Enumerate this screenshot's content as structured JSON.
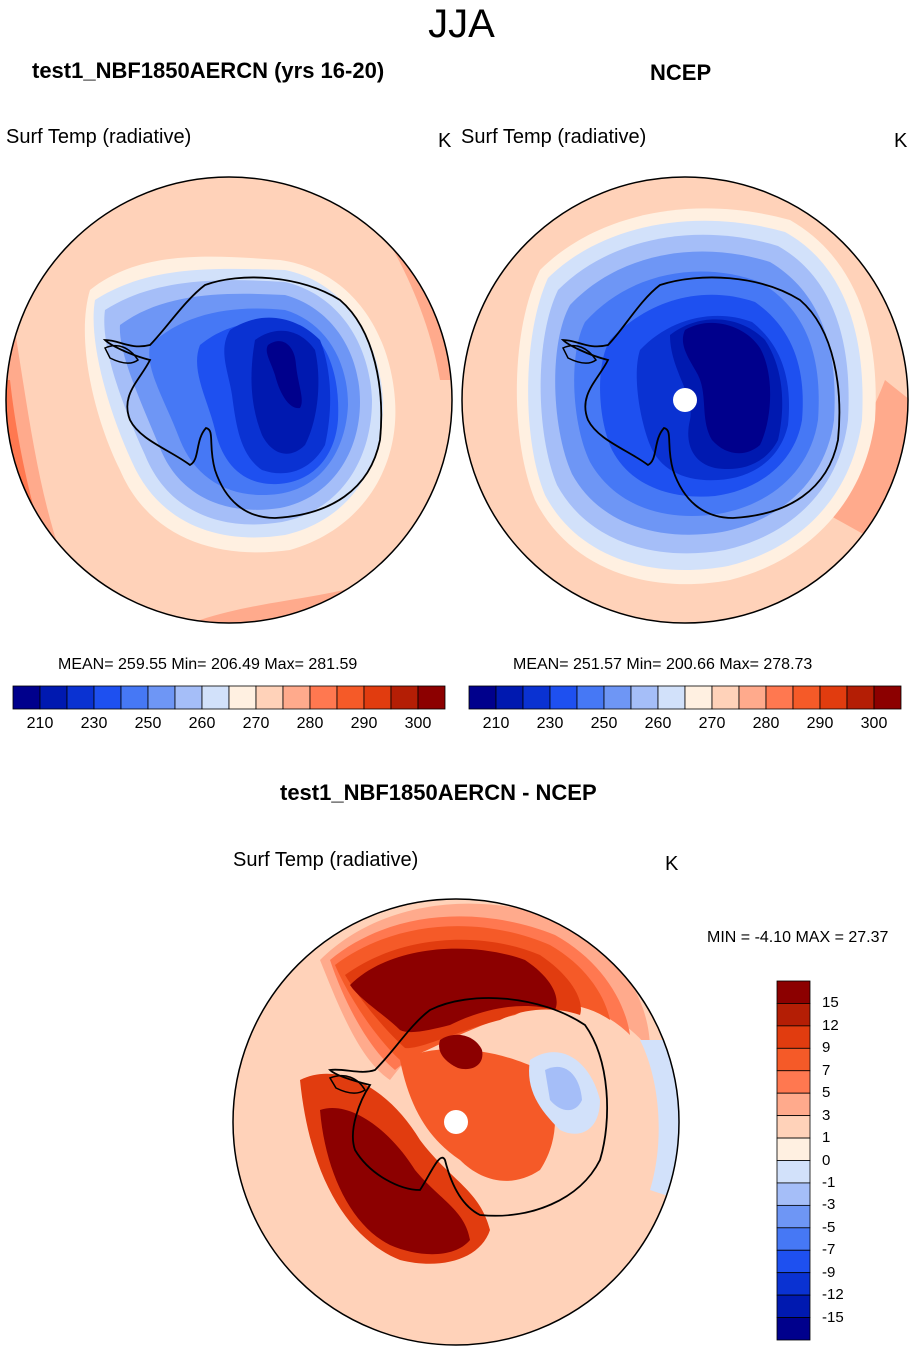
{
  "figure": {
    "title": "JJA",
    "panels": [
      {
        "title": "test1_NBF1850AERCN (yrs 16-20)",
        "variable": "Surf Temp (radiative)",
        "units": "K",
        "stats_text": "MEAN= 259.55  Min= 206.49  Max= 281.59"
      },
      {
        "title": "NCEP",
        "variable": "Surf Temp (radiative)",
        "units": "K",
        "stats_text": "MEAN= 251.57  Min= 200.66  Max= 278.73"
      },
      {
        "title": "test1_NBF1850AERCN - NCEP",
        "variable": "Surf Temp (radiative)",
        "units": "K",
        "stats_text": "MIN =  -4.10 MAX =  27.37"
      }
    ],
    "abs_colors": [
      "#00008c",
      "#0019b0",
      "#0a32d2",
      "#1e50f0",
      "#4678f5",
      "#6e96f5",
      "#a5bef8",
      "#d2e1fa",
      "#fff0e1",
      "#ffd2b9",
      "#ffaa8c",
      "#ff7850",
      "#f55a28",
      "#e13c0f",
      "#b41e05",
      "#8c0000"
    ],
    "diff_colors": [
      "#00008c",
      "#0019b0",
      "#0a32d2",
      "#1e50f0",
      "#4678f5",
      "#6e96f5",
      "#a5bef8",
      "#d2e1fa",
      "#fff0e1",
      "#ffd2b9",
      "#ffaa8c",
      "#ff7850",
      "#f55a28",
      "#e13c0f",
      "#b41e05",
      "#8c0000"
    ]
  },
  "chart_data": [
    {
      "type": "heatmap",
      "projection": "south-polar-stereographic",
      "title": "test1_NBF1850AERCN (yrs 16-20)",
      "variable": "Surf Temp (radiative)",
      "units": "K",
      "mean": 259.55,
      "min": 206.49,
      "max": 281.59,
      "colorbar_ticks": [
        "210",
        "230",
        "250",
        "260",
        "270",
        "280",
        "290",
        "300"
      ]
    },
    {
      "type": "heatmap",
      "projection": "south-polar-stereographic",
      "title": "NCEP",
      "variable": "Surf Temp (radiative)",
      "units": "K",
      "mean": 251.57,
      "min": 200.66,
      "max": 278.73,
      "colorbar_ticks": [
        "210",
        "230",
        "250",
        "260",
        "270",
        "280",
        "290",
        "300"
      ]
    },
    {
      "type": "heatmap",
      "projection": "south-polar-stereographic",
      "title": "test1_NBF1850AERCN - NCEP",
      "variable": "Surf Temp (radiative)",
      "units": "K",
      "min": -4.1,
      "max": 27.37,
      "colorbar_ticks": [
        "15",
        "12",
        "9",
        "7",
        "5",
        "3",
        "1",
        "0",
        "-1",
        "-3",
        "-5",
        "-7",
        "-9",
        "-12",
        "-15"
      ]
    }
  ]
}
